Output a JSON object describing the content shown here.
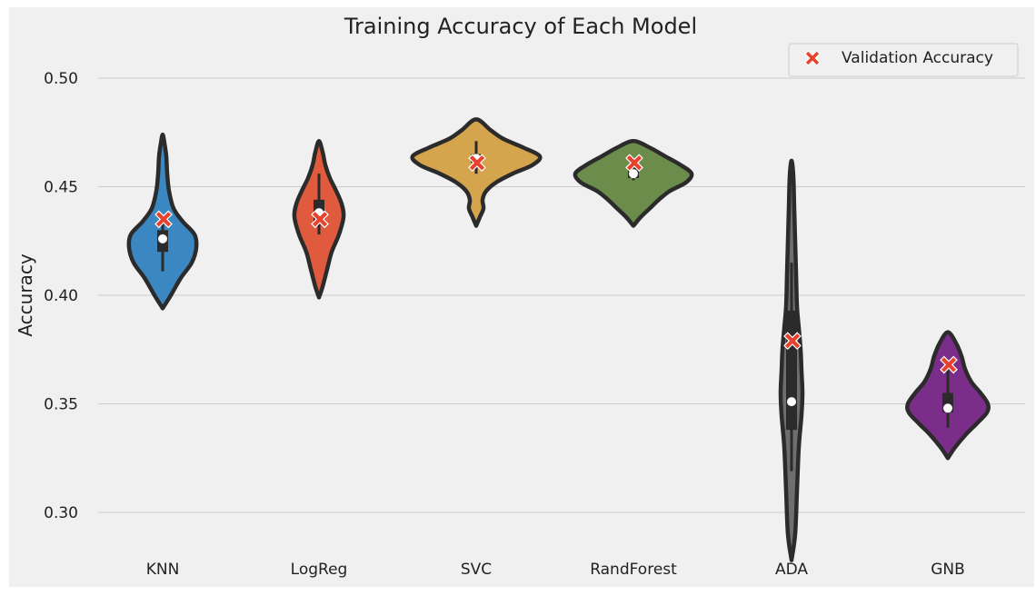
{
  "chart_data": {
    "type": "violin",
    "title": "Training Accuracy of Each Model",
    "xlabel": "",
    "ylabel": "Accuracy",
    "ylim": [
      0.28,
      0.515
    ],
    "yticks": [
      "0.30",
      "0.35",
      "0.40",
      "0.45",
      "0.50"
    ],
    "grid": "horizontal",
    "legend": {
      "placement": "top-right",
      "entries": [
        "Validation Accuracy"
      ]
    },
    "marker_color": "#e8412e",
    "outline_color": "#2b2b2b",
    "categories": [
      "KNN",
      "LogReg",
      "SVC",
      "RandForest",
      "ADA",
      "GNB"
    ],
    "violins": [
      {
        "name": "KNN",
        "color": "#3a87c1",
        "min": 0.394,
        "max": 0.474,
        "q1": 0.42,
        "median": 0.426,
        "q3": 0.43,
        "whisker_low": 0.411,
        "whisker_high": 0.437,
        "validation": 0.435,
        "profile": [
          [
            0.394,
            0
          ],
          [
            0.4,
            9
          ],
          [
            0.408,
            20
          ],
          [
            0.415,
            32
          ],
          [
            0.422,
            37
          ],
          [
            0.428,
            35
          ],
          [
            0.434,
            22
          ],
          [
            0.44,
            12
          ],
          [
            0.448,
            7
          ],
          [
            0.456,
            5
          ],
          [
            0.464,
            4
          ],
          [
            0.47,
            2
          ],
          [
            0.474,
            0
          ]
        ]
      },
      {
        "name": "LogReg",
        "color": "#e05a3d",
        "min": 0.399,
        "max": 0.471,
        "q1": 0.433,
        "median": 0.438,
        "q3": 0.444,
        "whisker_low": 0.428,
        "whisker_high": 0.456,
        "validation": 0.435,
        "profile": [
          [
            0.399,
            0
          ],
          [
            0.404,
            4
          ],
          [
            0.412,
            9
          ],
          [
            0.42,
            14
          ],
          [
            0.428,
            22
          ],
          [
            0.436,
            27
          ],
          [
            0.442,
            25
          ],
          [
            0.448,
            19
          ],
          [
            0.454,
            12
          ],
          [
            0.46,
            7
          ],
          [
            0.466,
            4
          ],
          [
            0.471,
            0
          ]
        ]
      },
      {
        "name": "SVC",
        "color": "#d4a54c",
        "min": 0.432,
        "max": 0.481,
        "q1": 0.461,
        "median": 0.463,
        "q3": 0.465,
        "whisker_low": 0.456,
        "whisker_high": 0.471,
        "validation": 0.461,
        "profile": [
          [
            0.432,
            0
          ],
          [
            0.436,
            4
          ],
          [
            0.44,
            8
          ],
          [
            0.444,
            7
          ],
          [
            0.448,
            11
          ],
          [
            0.452,
            22
          ],
          [
            0.456,
            40
          ],
          [
            0.46,
            62
          ],
          [
            0.464,
            70
          ],
          [
            0.468,
            52
          ],
          [
            0.472,
            30
          ],
          [
            0.476,
            16
          ],
          [
            0.481,
            0
          ]
        ]
      },
      {
        "name": "RandForest",
        "color": "#6b8c4a",
        "min": 0.432,
        "max": 0.471,
        "q1": 0.454,
        "median": 0.456,
        "q3": 0.459,
        "whisker_low": 0.453,
        "whisker_high": 0.461,
        "validation": 0.461,
        "profile": [
          [
            0.432,
            0
          ],
          [
            0.436,
            8
          ],
          [
            0.44,
            18
          ],
          [
            0.444,
            28
          ],
          [
            0.448,
            40
          ],
          [
            0.452,
            58
          ],
          [
            0.456,
            64
          ],
          [
            0.46,
            52
          ],
          [
            0.464,
            35
          ],
          [
            0.468,
            18
          ],
          [
            0.471,
            0
          ]
        ]
      },
      {
        "name": "ADA",
        "color": "#6e6e6e",
        "min": 0.278,
        "max": 0.462,
        "q1": 0.338,
        "median": 0.351,
        "q3": 0.393,
        "whisker_low": 0.319,
        "whisker_high": 0.415,
        "validation": 0.379,
        "profile": [
          [
            0.278,
            0
          ],
          [
            0.29,
            4
          ],
          [
            0.31,
            6
          ],
          [
            0.33,
            8
          ],
          [
            0.345,
            11
          ],
          [
            0.355,
            12
          ],
          [
            0.365,
            11
          ],
          [
            0.375,
            10
          ],
          [
            0.385,
            8
          ],
          [
            0.395,
            6
          ],
          [
            0.41,
            5
          ],
          [
            0.425,
            4
          ],
          [
            0.44,
            3
          ],
          [
            0.455,
            2
          ],
          [
            0.462,
            0
          ]
        ]
      },
      {
        "name": "GNB",
        "color": "#7b2d8a",
        "min": 0.325,
        "max": 0.383,
        "q1": 0.346,
        "median": 0.348,
        "q3": 0.355,
        "whisker_low": 0.339,
        "whisker_high": 0.368,
        "validation": 0.368,
        "profile": [
          [
            0.325,
            0
          ],
          [
            0.33,
            8
          ],
          [
            0.336,
            20
          ],
          [
            0.341,
            32
          ],
          [
            0.346,
            43
          ],
          [
            0.35,
            44
          ],
          [
            0.355,
            36
          ],
          [
            0.36,
            26
          ],
          [
            0.366,
            19
          ],
          [
            0.372,
            15
          ],
          [
            0.378,
            9
          ],
          [
            0.383,
            0
          ]
        ]
      }
    ]
  }
}
